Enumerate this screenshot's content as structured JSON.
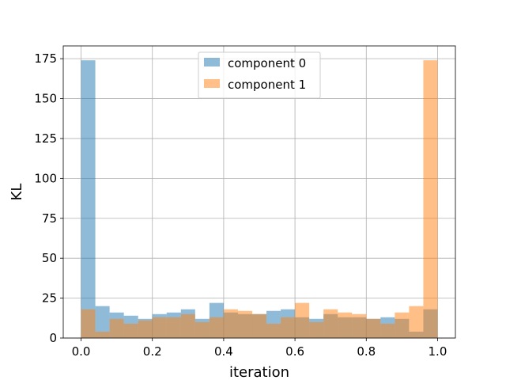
{
  "chart_data": {
    "type": "bar",
    "title": "",
    "xlabel": "iteration",
    "ylabel": "KL",
    "xlim": [
      -0.05,
      1.05
    ],
    "ylim": [
      0,
      183
    ],
    "xticks": [
      0.0,
      0.2,
      0.4,
      0.6,
      0.8,
      1.0
    ],
    "xtick_labels": [
      "0.0",
      "0.2",
      "0.4",
      "0.6",
      "0.8",
      "1.0"
    ],
    "yticks": [
      0,
      25,
      50,
      75,
      100,
      125,
      150,
      175
    ],
    "ytick_labels": [
      "0",
      "25",
      "50",
      "75",
      "100",
      "125",
      "150",
      "175"
    ],
    "grid": true,
    "legend_position": "top-center",
    "bin_edges": [
      0.0,
      0.04,
      0.08,
      0.12,
      0.16,
      0.2,
      0.24,
      0.28,
      0.32,
      0.36,
      0.4,
      0.44,
      0.48,
      0.52,
      0.56,
      0.6,
      0.64,
      0.68,
      0.72,
      0.76,
      0.8,
      0.84,
      0.88,
      0.92,
      0.96,
      1.0
    ],
    "series": [
      {
        "name": "component 0",
        "color": "#1f77b4",
        "alpha": 0.5,
        "values": [
          174,
          20,
          16,
          14,
          12,
          15,
          16,
          18,
          12,
          22,
          16,
          15,
          15,
          17,
          18,
          13,
          12,
          15,
          13,
          13,
          12,
          13,
          12,
          4,
          18
        ]
      },
      {
        "name": "component 1",
        "color": "#ff7f0e",
        "alpha": 0.5,
        "values": [
          18,
          4,
          12,
          9,
          11,
          13,
          13,
          15,
          10,
          13,
          18,
          17,
          15,
          9,
          13,
          22,
          10,
          18,
          16,
          15,
          12,
          9,
          16,
          20,
          174
        ]
      }
    ]
  }
}
